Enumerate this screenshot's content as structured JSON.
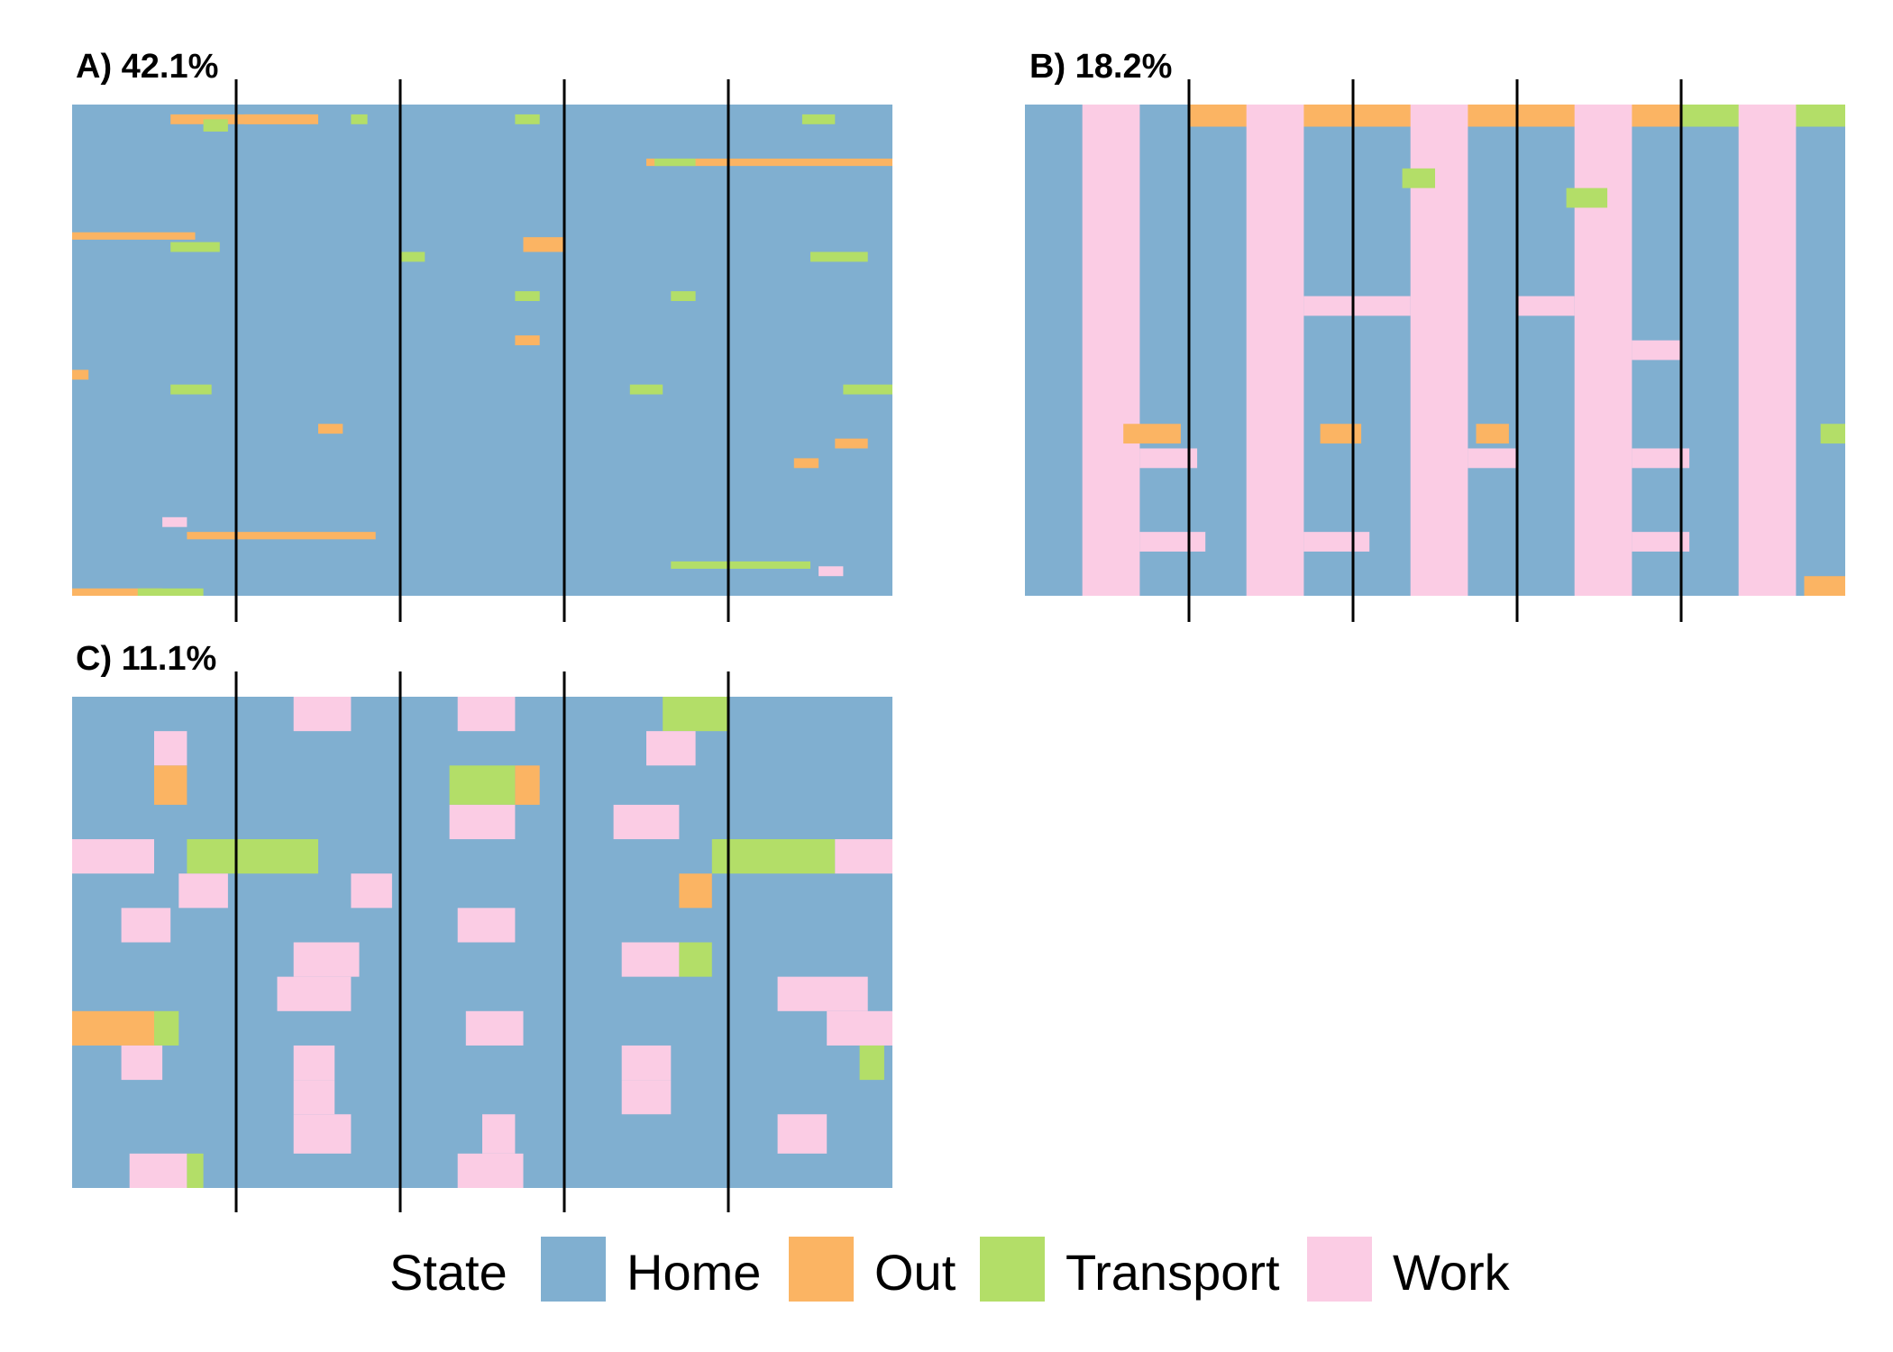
{
  "legend": {
    "title": "State",
    "states": [
      {
        "key": "home",
        "label": "Home",
        "color": "#80AFD0"
      },
      {
        "key": "out",
        "label": "Out",
        "color": "#FBB463"
      },
      {
        "key": "transport",
        "label": "Transport",
        "color": "#B3DE68"
      },
      {
        "key": "work",
        "label": "Work",
        "color": "#FBCCE4"
      }
    ]
  },
  "chart_data": [
    {
      "type": "heatmap",
      "title": "A) 42.1%",
      "panel": "A",
      "x_range": [
        0,
        1
      ],
      "day_divisions": 5,
      "base_state": "home",
      "segments": [
        {
          "row": 0.02,
          "h": 0.02,
          "x0": 0.12,
          "x1": 0.3,
          "state": "out"
        },
        {
          "row": 0.02,
          "h": 0.02,
          "x0": 0.21,
          "x1": 0.29,
          "state": "out"
        },
        {
          "row": 0.03,
          "h": 0.025,
          "x0": 0.16,
          "x1": 0.19,
          "state": "transport"
        },
        {
          "row": 0.02,
          "h": 0.02,
          "x0": 0.34,
          "x1": 0.36,
          "state": "transport"
        },
        {
          "row": 0.02,
          "h": 0.02,
          "x0": 0.54,
          "x1": 0.57,
          "state": "transport"
        },
        {
          "row": 0.02,
          "h": 0.02,
          "x0": 0.89,
          "x1": 0.93,
          "state": "transport"
        },
        {
          "row": 0.11,
          "h": 0.015,
          "x0": 0.7,
          "x1": 1.0,
          "state": "out"
        },
        {
          "row": 0.11,
          "h": 0.015,
          "x0": 0.71,
          "x1": 0.76,
          "state": "transport"
        },
        {
          "row": 0.26,
          "h": 0.015,
          "x0": 0.0,
          "x1": 0.15,
          "state": "out"
        },
        {
          "row": 0.28,
          "h": 0.02,
          "x0": 0.12,
          "x1": 0.18,
          "state": "transport"
        },
        {
          "row": 0.27,
          "h": 0.03,
          "x0": 0.55,
          "x1": 0.6,
          "state": "out"
        },
        {
          "row": 0.3,
          "h": 0.02,
          "x0": 0.4,
          "x1": 0.43,
          "state": "transport"
        },
        {
          "row": 0.3,
          "h": 0.02,
          "x0": 0.9,
          "x1": 0.97,
          "state": "transport"
        },
        {
          "row": 0.38,
          "h": 0.02,
          "x0": 0.54,
          "x1": 0.57,
          "state": "transport"
        },
        {
          "row": 0.38,
          "h": 0.02,
          "x0": 0.73,
          "x1": 0.76,
          "state": "transport"
        },
        {
          "row": 0.47,
          "h": 0.02,
          "x0": 0.54,
          "x1": 0.57,
          "state": "out"
        },
        {
          "row": 0.54,
          "h": 0.02,
          "x0": 0.0,
          "x1": 0.02,
          "state": "out"
        },
        {
          "row": 0.57,
          "h": 0.02,
          "x0": 0.12,
          "x1": 0.17,
          "state": "transport"
        },
        {
          "row": 0.57,
          "h": 0.02,
          "x0": 0.68,
          "x1": 0.72,
          "state": "transport"
        },
        {
          "row": 0.57,
          "h": 0.02,
          "x0": 0.94,
          "x1": 1.0,
          "state": "transport"
        },
        {
          "row": 0.65,
          "h": 0.02,
          "x0": 0.3,
          "x1": 0.33,
          "state": "out"
        },
        {
          "row": 0.68,
          "h": 0.02,
          "x0": 0.93,
          "x1": 0.97,
          "state": "out"
        },
        {
          "row": 0.72,
          "h": 0.02,
          "x0": 0.88,
          "x1": 0.91,
          "state": "out"
        },
        {
          "row": 0.84,
          "h": 0.02,
          "x0": 0.11,
          "x1": 0.14,
          "state": "work"
        },
        {
          "row": 0.87,
          "h": 0.015,
          "x0": 0.14,
          "x1": 0.37,
          "state": "out"
        },
        {
          "row": 0.93,
          "h": 0.015,
          "x0": 0.73,
          "x1": 0.9,
          "state": "transport"
        },
        {
          "row": 0.94,
          "h": 0.02,
          "x0": 0.91,
          "x1": 0.94,
          "state": "work"
        },
        {
          "row": 0.985,
          "h": 0.015,
          "x0": 0.0,
          "x1": 0.11,
          "state": "out"
        },
        {
          "row": 0.985,
          "h": 0.015,
          "x0": 0.08,
          "x1": 0.16,
          "state": "transport"
        }
      ]
    },
    {
      "type": "heatmap",
      "title": "B) 18.2%",
      "panel": "B",
      "x_range": [
        0,
        1
      ],
      "day_divisions": 5,
      "base_state": "home",
      "segments": [
        {
          "row": 0.0,
          "h": 0.045,
          "x0": 0.2,
          "x1": 0.8,
          "state": "out"
        },
        {
          "row": 0.0,
          "h": 0.045,
          "x0": 0.8,
          "x1": 1.0,
          "state": "transport"
        },
        {
          "row": 0.0,
          "h": 1.0,
          "x0": 0.07,
          "x1": 0.14,
          "state": "work"
        },
        {
          "row": 0.0,
          "h": 1.0,
          "x0": 0.27,
          "x1": 0.34,
          "state": "work"
        },
        {
          "row": 0.0,
          "h": 1.0,
          "x0": 0.47,
          "x1": 0.54,
          "state": "work"
        },
        {
          "row": 0.0,
          "h": 1.0,
          "x0": 0.67,
          "x1": 0.74,
          "state": "work"
        },
        {
          "row": 0.0,
          "h": 1.0,
          "x0": 0.87,
          "x1": 0.94,
          "state": "work"
        },
        {
          "row": 0.13,
          "h": 0.04,
          "x0": 0.46,
          "x1": 0.5,
          "state": "transport"
        },
        {
          "row": 0.17,
          "h": 0.04,
          "x0": 0.66,
          "x1": 0.71,
          "state": "transport"
        },
        {
          "row": 0.39,
          "h": 0.04,
          "x0": 0.34,
          "x1": 0.47,
          "state": "work"
        },
        {
          "row": 0.39,
          "h": 0.04,
          "x0": 0.6,
          "x1": 0.67,
          "state": "work"
        },
        {
          "row": 0.48,
          "h": 0.04,
          "x0": 0.74,
          "x1": 0.8,
          "state": "work"
        },
        {
          "row": 0.65,
          "h": 0.04,
          "x0": 0.12,
          "x1": 0.19,
          "state": "out"
        },
        {
          "row": 0.65,
          "h": 0.04,
          "x0": 0.36,
          "x1": 0.41,
          "state": "out"
        },
        {
          "row": 0.65,
          "h": 0.04,
          "x0": 0.55,
          "x1": 0.59,
          "state": "out"
        },
        {
          "row": 0.65,
          "h": 0.04,
          "x0": 0.97,
          "x1": 1.0,
          "state": "transport"
        },
        {
          "row": 0.7,
          "h": 0.04,
          "x0": 0.14,
          "x1": 0.21,
          "state": "work"
        },
        {
          "row": 0.7,
          "h": 0.04,
          "x0": 0.54,
          "x1": 0.6,
          "state": "work"
        },
        {
          "row": 0.7,
          "h": 0.04,
          "x0": 0.74,
          "x1": 0.81,
          "state": "work"
        },
        {
          "row": 0.87,
          "h": 0.04,
          "x0": 0.14,
          "x1": 0.22,
          "state": "work"
        },
        {
          "row": 0.87,
          "h": 0.04,
          "x0": 0.34,
          "x1": 0.42,
          "state": "work"
        },
        {
          "row": 0.87,
          "h": 0.04,
          "x0": 0.74,
          "x1": 0.81,
          "state": "work"
        },
        {
          "row": 0.96,
          "h": 0.04,
          "x0": 0.95,
          "x1": 1.0,
          "state": "out"
        }
      ]
    },
    {
      "type": "heatmap",
      "title": "C) 11.1%",
      "panel": "C",
      "x_range": [
        0,
        1
      ],
      "day_divisions": 5,
      "base_state": "home",
      "segments": [
        {
          "row": 0.0,
          "h": 0.07,
          "x0": 0.27,
          "x1": 0.34,
          "state": "work"
        },
        {
          "row": 0.0,
          "h": 0.07,
          "x0": 0.47,
          "x1": 0.54,
          "state": "work"
        },
        {
          "row": 0.0,
          "h": 0.07,
          "x0": 0.72,
          "x1": 0.8,
          "state": "transport"
        },
        {
          "row": 0.07,
          "h": 0.07,
          "x0": 0.1,
          "x1": 0.14,
          "state": "work"
        },
        {
          "row": 0.07,
          "h": 0.07,
          "x0": 0.7,
          "x1": 0.76,
          "state": "work"
        },
        {
          "row": 0.14,
          "h": 0.08,
          "x0": 0.1,
          "x1": 0.14,
          "state": "out"
        },
        {
          "row": 0.14,
          "h": 0.08,
          "x0": 0.46,
          "x1": 0.54,
          "state": "transport"
        },
        {
          "row": 0.14,
          "h": 0.08,
          "x0": 0.54,
          "x1": 0.57,
          "state": "out"
        },
        {
          "row": 0.22,
          "h": 0.07,
          "x0": 0.46,
          "x1": 0.54,
          "state": "work"
        },
        {
          "row": 0.22,
          "h": 0.07,
          "x0": 0.66,
          "x1": 0.74,
          "state": "work"
        },
        {
          "row": 0.29,
          "h": 0.07,
          "x0": 0.0,
          "x1": 0.1,
          "state": "work"
        },
        {
          "row": 0.29,
          "h": 0.07,
          "x0": 0.14,
          "x1": 0.3,
          "state": "transport"
        },
        {
          "row": 0.29,
          "h": 0.07,
          "x0": 0.78,
          "x1": 0.93,
          "state": "transport"
        },
        {
          "row": 0.29,
          "h": 0.07,
          "x0": 0.93,
          "x1": 1.0,
          "state": "work"
        },
        {
          "row": 0.36,
          "h": 0.07,
          "x0": 0.13,
          "x1": 0.19,
          "state": "work"
        },
        {
          "row": 0.36,
          "h": 0.07,
          "x0": 0.34,
          "x1": 0.39,
          "state": "work"
        },
        {
          "row": 0.36,
          "h": 0.07,
          "x0": 0.74,
          "x1": 0.78,
          "state": "out"
        },
        {
          "row": 0.43,
          "h": 0.07,
          "x0": 0.06,
          "x1": 0.12,
          "state": "work"
        },
        {
          "row": 0.43,
          "h": 0.07,
          "x0": 0.47,
          "x1": 0.54,
          "state": "work"
        },
        {
          "row": 0.5,
          "h": 0.07,
          "x0": 0.27,
          "x1": 0.35,
          "state": "work"
        },
        {
          "row": 0.5,
          "h": 0.07,
          "x0": 0.67,
          "x1": 0.74,
          "state": "work"
        },
        {
          "row": 0.5,
          "h": 0.07,
          "x0": 0.74,
          "x1": 0.78,
          "state": "transport"
        },
        {
          "row": 0.57,
          "h": 0.07,
          "x0": 0.25,
          "x1": 0.34,
          "state": "work"
        },
        {
          "row": 0.57,
          "h": 0.07,
          "x0": 0.86,
          "x1": 0.97,
          "state": "work"
        },
        {
          "row": 0.64,
          "h": 0.07,
          "x0": 0.0,
          "x1": 0.1,
          "state": "out"
        },
        {
          "row": 0.64,
          "h": 0.07,
          "x0": 0.1,
          "x1": 0.13,
          "state": "transport"
        },
        {
          "row": 0.64,
          "h": 0.07,
          "x0": 0.48,
          "x1": 0.55,
          "state": "work"
        },
        {
          "row": 0.64,
          "h": 0.07,
          "x0": 0.92,
          "x1": 1.0,
          "state": "work"
        },
        {
          "row": 0.71,
          "h": 0.07,
          "x0": 0.06,
          "x1": 0.11,
          "state": "work"
        },
        {
          "row": 0.71,
          "h": 0.07,
          "x0": 0.27,
          "x1": 0.32,
          "state": "work"
        },
        {
          "row": 0.71,
          "h": 0.07,
          "x0": 0.67,
          "x1": 0.73,
          "state": "work"
        },
        {
          "row": 0.71,
          "h": 0.07,
          "x0": 0.96,
          "x1": 0.99,
          "state": "transport"
        },
        {
          "row": 0.78,
          "h": 0.07,
          "x0": 0.27,
          "x1": 0.32,
          "state": "work"
        },
        {
          "row": 0.78,
          "h": 0.07,
          "x0": 0.67,
          "x1": 0.73,
          "state": "work"
        },
        {
          "row": 0.85,
          "h": 0.08,
          "x0": 0.27,
          "x1": 0.34,
          "state": "work"
        },
        {
          "row": 0.85,
          "h": 0.08,
          "x0": 0.5,
          "x1": 0.54,
          "state": "work"
        },
        {
          "row": 0.85,
          "h": 0.08,
          "x0": 0.86,
          "x1": 0.92,
          "state": "work"
        },
        {
          "row": 0.93,
          "h": 0.07,
          "x0": 0.07,
          "x1": 0.14,
          "state": "work"
        },
        {
          "row": 0.93,
          "h": 0.07,
          "x0": 0.14,
          "x1": 0.16,
          "state": "transport"
        },
        {
          "row": 0.93,
          "h": 0.07,
          "x0": 0.47,
          "x1": 0.55,
          "state": "work"
        }
      ]
    }
  ]
}
